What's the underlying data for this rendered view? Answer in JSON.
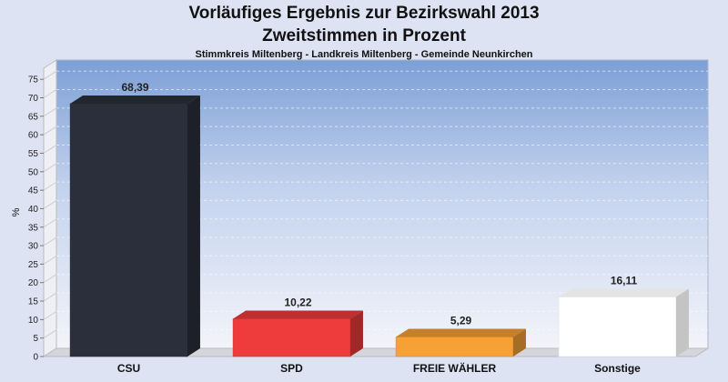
{
  "chart_data": {
    "type": "bar",
    "title": "Vorläufiges Ergebnis zur Bezirkswahl 2013",
    "subtitle": "Zweitstimmen in Prozent",
    "caption": "Stimmkreis Miltenberg - Landkreis Miltenberg - Gemeinde Neunkirchen",
    "ylabel": "%",
    "ylim": [
      0,
      78
    ],
    "yticks": [
      0,
      5,
      10,
      15,
      20,
      25,
      30,
      35,
      40,
      45,
      50,
      55,
      60,
      65,
      70,
      75
    ],
    "grid": true,
    "categories": [
      "CSU",
      "SPD",
      "FREIE WÄHLER",
      "Sonstige"
    ],
    "values": [
      68.39,
      10.22,
      5.29,
      16.11
    ],
    "value_labels": [
      "68,39",
      "10,22",
      "5,29",
      "16,11"
    ],
    "colors": [
      "#2b2f3b",
      "#ee3b3b",
      "#f7a035",
      "#ffffff"
    ]
  }
}
